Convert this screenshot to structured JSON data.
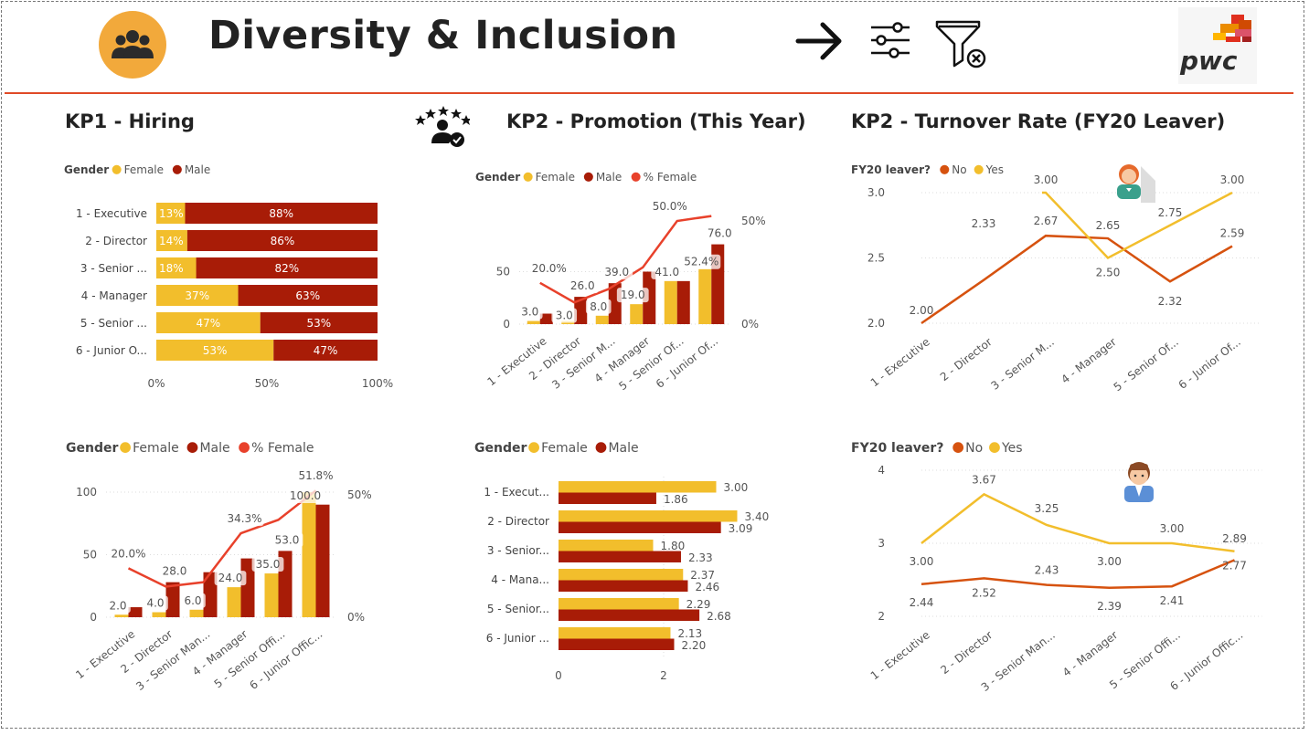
{
  "header": {
    "title": "Diversity & Inclusion",
    "icons": [
      "people-icon",
      "arrow-right-icon",
      "sliders-icon",
      "clear-filter-icon"
    ],
    "logo_text": "pwc"
  },
  "sections": {
    "hiring": "KP1 - Hiring",
    "promotion": "KP2 - Promotion (This Year)",
    "turnover": "KP2 - Turnover Rate (FY20  Leaver)"
  },
  "colors": {
    "female": "#F2BE2C",
    "male": "#A81C07",
    "pct_female": "#E8412B",
    "leaver_no": "#D6520F",
    "leaver_yes": "#F2BE2C",
    "accent": "#E04A26"
  },
  "chart_data": [
    {
      "id": "hiring-pct",
      "type": "bar",
      "orientation": "horizontal",
      "stacked": "100%",
      "legend_title": "Gender",
      "legend": [
        "Female",
        "Male"
      ],
      "categories": [
        "1 - Executive",
        "2 - Director",
        "3 - Senior ...",
        "4 - Manager",
        "5 - Senior ...",
        "6 - Junior O..."
      ],
      "series": [
        {
          "name": "Female",
          "values": [
            13,
            14,
            18,
            37,
            47,
            53
          ],
          "labels": [
            "13%",
            "14%",
            "18%",
            "37%",
            "47%",
            "53%"
          ]
        },
        {
          "name": "Male",
          "values": [
            88,
            86,
            82,
            63,
            53,
            47
          ],
          "labels": [
            "88%",
            "86%",
            "82%",
            "63%",
            "53%",
            "47%"
          ]
        }
      ],
      "x_ticks": [
        "0%",
        "50%",
        "100%"
      ],
      "xlim": [
        0,
        100
      ]
    },
    {
      "id": "hiring-count",
      "type": "bar",
      "combo": "line",
      "legend_title": "Gender",
      "legend": [
        "Female",
        "Male",
        "% Female"
      ],
      "categories": [
        "1 - Executive",
        "2 - Director",
        "3 - Senior Man...",
        "4 - Manager",
        "5 - Senior Offi...",
        "6 - Junior Offic..."
      ],
      "series": [
        {
          "name": "Female",
          "values": [
            2.0,
            4.0,
            6.0,
            24.0,
            35.0,
            100.0
          ],
          "labels": [
            "2.0",
            "4.0",
            "6.0",
            "24.0",
            "35.0",
            "100.0"
          ]
        },
        {
          "name": "Male",
          "values": [
            8,
            28.0,
            36,
            47,
            53.0,
            90
          ]
        },
        {
          "name": "% Female",
          "axis": "right",
          "values": [
            20.0,
            12.5,
            14.3,
            34.3,
            39.8,
            51.8
          ],
          "labels": [
            "20.0%",
            "",
            "",
            "34.3%",
            "",
            "51.8%"
          ]
        }
      ],
      "male_labels": [
        [
          "1",
          "28.0"
        ],
        [
          "4",
          "53.0"
        ]
      ],
      "y_ticks": [
        "0",
        "50",
        "100"
      ],
      "ylim": [
        0,
        100
      ],
      "y2_ticks": [
        "0%",
        "50%"
      ],
      "y2lim": [
        0,
        50
      ]
    },
    {
      "id": "promotion-count",
      "type": "bar",
      "combo": "line",
      "legend_title": "Gender",
      "legend": [
        "Female",
        "Male",
        "% Female"
      ],
      "categories": [
        "1 - Executive",
        "2 - Director",
        "3 - Senior M...",
        "4 - Manager",
        "5 - Senior Of...",
        "6 - Junior Of..."
      ],
      "series": [
        {
          "name": "Female",
          "values": [
            3.0,
            3.0,
            8.0,
            19.0,
            41.0,
            52.4
          ],
          "labels": [
            "3.0",
            "3.0",
            "8.0",
            "19.0",
            "41.0",
            "52.4%"
          ]
        },
        {
          "name": "Male",
          "values": [
            10,
            26.0,
            39.0,
            50,
            41,
            76.0
          ]
        },
        {
          "name": "% Female",
          "axis": "right",
          "values": [
            20.0,
            10.5,
            17.0,
            27.5,
            50.0,
            52.4
          ],
          "labels": [
            "20.0%",
            "",
            "",
            "",
            "50.0%",
            ""
          ]
        }
      ],
      "male_labels": [
        [
          "1",
          "26.0"
        ],
        [
          "2",
          "39.0"
        ],
        [
          "5",
          "76.0"
        ]
      ],
      "y_ticks": [
        "0",
        "50"
      ],
      "ylim": [
        0,
        80
      ],
      "y2_ticks": [
        "0%",
        "50%"
      ],
      "y2lim": [
        0,
        50
      ]
    },
    {
      "id": "promotion-avg",
      "type": "bar",
      "orientation": "horizontal",
      "legend_title": "Gender",
      "legend": [
        "Female",
        "Male"
      ],
      "categories": [
        "1 - Execut...",
        "2 - Director",
        "3 - Senior...",
        "4 - Mana...",
        "5 - Senior...",
        "6 - Junior ..."
      ],
      "series": [
        {
          "name": "Female",
          "values": [
            3.0,
            3.4,
            1.8,
            2.37,
            2.29,
            2.13
          ],
          "labels": [
            "3.00",
            "3.40",
            "1.80",
            "2.37",
            "2.29",
            "2.13"
          ]
        },
        {
          "name": "Male",
          "values": [
            1.86,
            3.09,
            2.33,
            2.46,
            2.68,
            2.2
          ],
          "labels": [
            "1.86",
            "3.09",
            "2.33",
            "2.46",
            "2.68",
            "2.20"
          ]
        }
      ],
      "x_ticks": [
        "0",
        "2"
      ],
      "xlim": [
        0,
        4
      ]
    },
    {
      "id": "turnover-1",
      "type": "line",
      "legend_title": "FY20 leaver?",
      "legend": [
        "No",
        "Yes"
      ],
      "categories": [
        "1 - Executive",
        "2 - Director",
        "3 - Senior M...",
        "4 - Manager",
        "5 - Senior Of...",
        "6 - Junior Of..."
      ],
      "series": [
        {
          "name": "No",
          "values": [
            2.0,
            2.33,
            2.67,
            2.65,
            2.32,
            2.59
          ],
          "labels": [
            "2.00",
            "2.33",
            "2.67",
            "2.65",
            "2.32",
            "2.59"
          ]
        },
        {
          "name": "Yes",
          "values": [
            null,
            null,
            3.0,
            2.5,
            2.75,
            3.0
          ],
          "labels": [
            "",
            "",
            "3.00",
            "2.50",
            "2.75",
            "3.00"
          ]
        }
      ],
      "y_ticks": [
        "2.0",
        "2.5",
        "3.0"
      ],
      "ylim": [
        2.0,
        3.0
      ]
    },
    {
      "id": "turnover-2",
      "type": "line",
      "legend_title": "FY20 leaver?",
      "legend": [
        "No",
        "Yes"
      ],
      "categories": [
        "1 - Executive",
        "2 - Director",
        "3 - Senior Man...",
        "4 - Manager",
        "5 - Senior Offi...",
        "6 - Junior Offic..."
      ],
      "series": [
        {
          "name": "No",
          "values": [
            2.44,
            2.52,
            2.43,
            2.39,
            2.41,
            2.77
          ],
          "labels": [
            "2.44",
            "2.52",
            "2.43",
            "2.39",
            "2.41",
            "2.77"
          ]
        },
        {
          "name": "Yes",
          "values": [
            3.0,
            3.67,
            3.25,
            3.0,
            3.0,
            2.89
          ],
          "labels": [
            "3.00",
            "3.67",
            "3.25",
            "3.00",
            "3.00",
            "2.89"
          ]
        }
      ],
      "y_ticks": [
        "2",
        "3",
        "4"
      ],
      "ylim": [
        2,
        4
      ]
    }
  ]
}
